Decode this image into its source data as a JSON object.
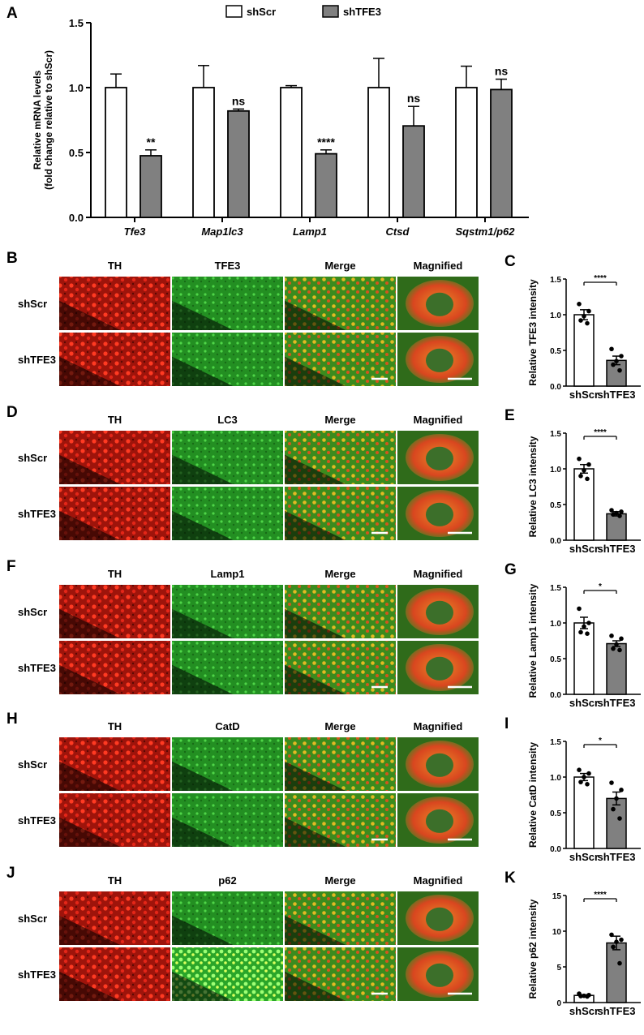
{
  "legend": {
    "items": [
      "shScr",
      "shTFE3"
    ]
  },
  "colors": {
    "shScr": "#ffffff",
    "shTFE3": "#808080"
  },
  "chart_data": [
    {
      "panel": "A",
      "type": "bar",
      "categories": [
        "Tfe3",
        "Map1lc3",
        "Lamp1",
        "Ctsd",
        "Sqstm1/p62"
      ],
      "series": [
        {
          "name": "shScr",
          "values": [
            1.0,
            1.0,
            1.0,
            1.0,
            1.0
          ],
          "errors": [
            0.105,
            0.17,
            0.015,
            0.225,
            0.165
          ]
        },
        {
          "name": "shTFE3",
          "values": [
            0.475,
            0.82,
            0.49,
            0.705,
            0.985
          ],
          "errors": [
            0.045,
            0.015,
            0.03,
            0.15,
            0.08
          ]
        }
      ],
      "significance": [
        "**",
        "ns",
        "****",
        "ns",
        "ns"
      ],
      "ylabel_line1": "Relative mRNA levels",
      "ylabel_line2": "(fold change relative to shScr)",
      "ylim": [
        0,
        1.5
      ],
      "yticks": [
        "0.0",
        "0.5",
        "1.0",
        "1.5"
      ],
      "legend_position": "top"
    },
    {
      "panel": "C",
      "type": "bar",
      "categories": [
        "shScr",
        "shTFE3"
      ],
      "values": [
        1.0,
        0.36
      ],
      "errors": [
        0.07,
        0.06
      ],
      "points": [
        [
          1.15,
          1.05,
          0.98,
          0.92,
          0.88
        ],
        [
          0.52,
          0.42,
          0.35,
          0.3,
          0.22
        ]
      ],
      "ylabel": "Relative TFE3 intensity",
      "ylim": [
        0,
        1.5
      ],
      "yticks": [
        "0.0",
        "0.5",
        "1.0",
        "1.5"
      ],
      "significance": "****"
    },
    {
      "panel": "E",
      "type": "bar",
      "categories": [
        "shScr",
        "shTFE3"
      ],
      "values": [
        1.0,
        0.37
      ],
      "errors": [
        0.06,
        0.03
      ],
      "points": [
        [
          1.14,
          1.06,
          0.98,
          0.9,
          0.86
        ],
        [
          0.42,
          0.4,
          0.38,
          0.36,
          0.34
        ]
      ],
      "ylabel": "Relative LC3 intensity",
      "ylim": [
        0,
        1.5
      ],
      "yticks": [
        "0.0",
        "0.5",
        "1.0",
        "1.5"
      ],
      "significance": "****"
    },
    {
      "panel": "G",
      "type": "bar",
      "categories": [
        "shScr",
        "shTFE3"
      ],
      "values": [
        1.0,
        0.71
      ],
      "errors": [
        0.08,
        0.04
      ],
      "points": [
        [
          1.2,
          1.0,
          0.95,
          0.87,
          0.85
        ],
        [
          0.82,
          0.78,
          0.7,
          0.64,
          0.62
        ]
      ],
      "ylabel": "Relative Lamp1 intensity",
      "ylim": [
        0,
        1.5
      ],
      "yticks": [
        "0.0",
        "0.5",
        "1.0",
        "1.5"
      ],
      "significance": "*"
    },
    {
      "panel": "I",
      "type": "bar",
      "categories": [
        "shScr",
        "shTFE3"
      ],
      "values": [
        1.0,
        0.7
      ],
      "errors": [
        0.05,
        0.09
      ],
      "points": [
        [
          1.1,
          1.05,
          1.0,
          0.93,
          0.9
        ],
        [
          0.92,
          0.82,
          0.7,
          0.55,
          0.42
        ]
      ],
      "ylabel": "Relative CatD intensity",
      "ylim": [
        0,
        1.5
      ],
      "yticks": [
        "0.0",
        "0.5",
        "1.0",
        "1.5"
      ],
      "significance": "*"
    },
    {
      "panel": "K",
      "type": "bar",
      "categories": [
        "shScr",
        "shTFE3"
      ],
      "values": [
        1.0,
        8.35
      ],
      "errors": [
        0.1,
        0.95
      ],
      "points": [
        [
          1.25,
          1.05,
          0.95,
          0.9,
          0.85
        ],
        [
          9.5,
          8.8,
          8.5,
          7.8,
          5.5
        ]
      ],
      "ylabel": "Relative p62 intensity",
      "ylim": [
        0,
        15
      ],
      "yticks": [
        "0",
        "5",
        "10",
        "15"
      ],
      "significance": "****"
    }
  ],
  "image_panels": [
    {
      "letter": "B",
      "headers": [
        "TH",
        "TFE3",
        "Merge",
        "Magnified"
      ],
      "rows": [
        "shScr",
        "shTFE3"
      ],
      "chart_letter": "C"
    },
    {
      "letter": "D",
      "headers": [
        "TH",
        "LC3",
        "Merge",
        "Magnified"
      ],
      "rows": [
        "shScr",
        "shTFE3"
      ],
      "chart_letter": "E"
    },
    {
      "letter": "F",
      "headers": [
        "TH",
        "Lamp1",
        "Merge",
        "Magnified"
      ],
      "rows": [
        "shScr",
        "shTFE3"
      ],
      "chart_letter": "G"
    },
    {
      "letter": "H",
      "headers": [
        "TH",
        "CatD",
        "Merge",
        "Magnified"
      ],
      "rows": [
        "shScr",
        "shTFE3"
      ],
      "chart_letter": "I"
    },
    {
      "letter": "J",
      "headers": [
        "TH",
        "p62",
        "Merge",
        "Magnified"
      ],
      "rows": [
        "shScr",
        "shTFE3"
      ],
      "chart_letter": "K"
    }
  ],
  "panel_a_letter": "A"
}
